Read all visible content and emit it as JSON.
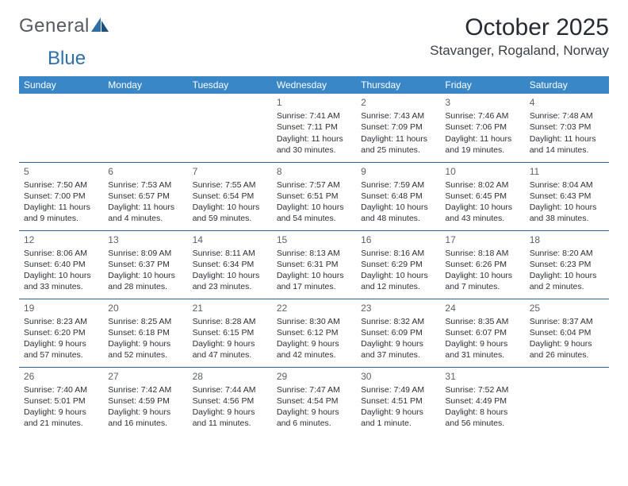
{
  "brand": {
    "part1": "General",
    "part2": "Blue"
  },
  "title": {
    "month": "October 2025",
    "location": "Stavanger, Rogaland, Norway"
  },
  "colors": {
    "header_bg": "#3a87c7",
    "header_text": "#ffffff",
    "row_border": "#2a6298",
    "daynum": "#5b616b",
    "body_text": "#2b2f37",
    "logo_text": "#555a61",
    "logo_blue": "#2f6fa8",
    "title_color": "#262b33"
  },
  "weekdays": [
    "Sunday",
    "Monday",
    "Tuesday",
    "Wednesday",
    "Thursday",
    "Friday",
    "Saturday"
  ],
  "weeks": [
    [
      {
        "empty": true
      },
      {
        "empty": true
      },
      {
        "empty": true
      },
      {
        "day": "1",
        "sunrise": "Sunrise: 7:41 AM",
        "sunset": "Sunset: 7:11 PM",
        "daylight": "Daylight: 11 hours and 30 minutes."
      },
      {
        "day": "2",
        "sunrise": "Sunrise: 7:43 AM",
        "sunset": "Sunset: 7:09 PM",
        "daylight": "Daylight: 11 hours and 25 minutes."
      },
      {
        "day": "3",
        "sunrise": "Sunrise: 7:46 AM",
        "sunset": "Sunset: 7:06 PM",
        "daylight": "Daylight: 11 hours and 19 minutes."
      },
      {
        "day": "4",
        "sunrise": "Sunrise: 7:48 AM",
        "sunset": "Sunset: 7:03 PM",
        "daylight": "Daylight: 11 hours and 14 minutes."
      }
    ],
    [
      {
        "day": "5",
        "sunrise": "Sunrise: 7:50 AM",
        "sunset": "Sunset: 7:00 PM",
        "daylight": "Daylight: 11 hours and 9 minutes."
      },
      {
        "day": "6",
        "sunrise": "Sunrise: 7:53 AM",
        "sunset": "Sunset: 6:57 PM",
        "daylight": "Daylight: 11 hours and 4 minutes."
      },
      {
        "day": "7",
        "sunrise": "Sunrise: 7:55 AM",
        "sunset": "Sunset: 6:54 PM",
        "daylight": "Daylight: 10 hours and 59 minutes."
      },
      {
        "day": "8",
        "sunrise": "Sunrise: 7:57 AM",
        "sunset": "Sunset: 6:51 PM",
        "daylight": "Daylight: 10 hours and 54 minutes."
      },
      {
        "day": "9",
        "sunrise": "Sunrise: 7:59 AM",
        "sunset": "Sunset: 6:48 PM",
        "daylight": "Daylight: 10 hours and 48 minutes."
      },
      {
        "day": "10",
        "sunrise": "Sunrise: 8:02 AM",
        "sunset": "Sunset: 6:45 PM",
        "daylight": "Daylight: 10 hours and 43 minutes."
      },
      {
        "day": "11",
        "sunrise": "Sunrise: 8:04 AM",
        "sunset": "Sunset: 6:43 PM",
        "daylight": "Daylight: 10 hours and 38 minutes."
      }
    ],
    [
      {
        "day": "12",
        "sunrise": "Sunrise: 8:06 AM",
        "sunset": "Sunset: 6:40 PM",
        "daylight": "Daylight: 10 hours and 33 minutes."
      },
      {
        "day": "13",
        "sunrise": "Sunrise: 8:09 AM",
        "sunset": "Sunset: 6:37 PM",
        "daylight": "Daylight: 10 hours and 28 minutes."
      },
      {
        "day": "14",
        "sunrise": "Sunrise: 8:11 AM",
        "sunset": "Sunset: 6:34 PM",
        "daylight": "Daylight: 10 hours and 23 minutes."
      },
      {
        "day": "15",
        "sunrise": "Sunrise: 8:13 AM",
        "sunset": "Sunset: 6:31 PM",
        "daylight": "Daylight: 10 hours and 17 minutes."
      },
      {
        "day": "16",
        "sunrise": "Sunrise: 8:16 AM",
        "sunset": "Sunset: 6:29 PM",
        "daylight": "Daylight: 10 hours and 12 minutes."
      },
      {
        "day": "17",
        "sunrise": "Sunrise: 8:18 AM",
        "sunset": "Sunset: 6:26 PM",
        "daylight": "Daylight: 10 hours and 7 minutes."
      },
      {
        "day": "18",
        "sunrise": "Sunrise: 8:20 AM",
        "sunset": "Sunset: 6:23 PM",
        "daylight": "Daylight: 10 hours and 2 minutes."
      }
    ],
    [
      {
        "day": "19",
        "sunrise": "Sunrise: 8:23 AM",
        "sunset": "Sunset: 6:20 PM",
        "daylight": "Daylight: 9 hours and 57 minutes."
      },
      {
        "day": "20",
        "sunrise": "Sunrise: 8:25 AM",
        "sunset": "Sunset: 6:18 PM",
        "daylight": "Daylight: 9 hours and 52 minutes."
      },
      {
        "day": "21",
        "sunrise": "Sunrise: 8:28 AM",
        "sunset": "Sunset: 6:15 PM",
        "daylight": "Daylight: 9 hours and 47 minutes."
      },
      {
        "day": "22",
        "sunrise": "Sunrise: 8:30 AM",
        "sunset": "Sunset: 6:12 PM",
        "daylight": "Daylight: 9 hours and 42 minutes."
      },
      {
        "day": "23",
        "sunrise": "Sunrise: 8:32 AM",
        "sunset": "Sunset: 6:09 PM",
        "daylight": "Daylight: 9 hours and 37 minutes."
      },
      {
        "day": "24",
        "sunrise": "Sunrise: 8:35 AM",
        "sunset": "Sunset: 6:07 PM",
        "daylight": "Daylight: 9 hours and 31 minutes."
      },
      {
        "day": "25",
        "sunrise": "Sunrise: 8:37 AM",
        "sunset": "Sunset: 6:04 PM",
        "daylight": "Daylight: 9 hours and 26 minutes."
      }
    ],
    [
      {
        "day": "26",
        "sunrise": "Sunrise: 7:40 AM",
        "sunset": "Sunset: 5:01 PM",
        "daylight": "Daylight: 9 hours and 21 minutes."
      },
      {
        "day": "27",
        "sunrise": "Sunrise: 7:42 AM",
        "sunset": "Sunset: 4:59 PM",
        "daylight": "Daylight: 9 hours and 16 minutes."
      },
      {
        "day": "28",
        "sunrise": "Sunrise: 7:44 AM",
        "sunset": "Sunset: 4:56 PM",
        "daylight": "Daylight: 9 hours and 11 minutes."
      },
      {
        "day": "29",
        "sunrise": "Sunrise: 7:47 AM",
        "sunset": "Sunset: 4:54 PM",
        "daylight": "Daylight: 9 hours and 6 minutes."
      },
      {
        "day": "30",
        "sunrise": "Sunrise: 7:49 AM",
        "sunset": "Sunset: 4:51 PM",
        "daylight": "Daylight: 9 hours and 1 minute."
      },
      {
        "day": "31",
        "sunrise": "Sunrise: 7:52 AM",
        "sunset": "Sunset: 4:49 PM",
        "daylight": "Daylight: 8 hours and 56 minutes."
      },
      {
        "empty": true
      }
    ]
  ]
}
